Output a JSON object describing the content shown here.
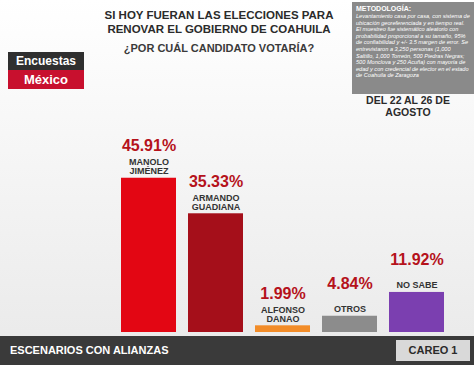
{
  "chart_data": {
    "type": "bar",
    "title": "SI HOY FUERAN LAS ELECCIONES PARA RENOVAR EL GOBIERNO DE COAHUILA",
    "subtitle": "¿POR CUÁL CANDIDATO VOTARÍA?",
    "categories": [
      "MANOLO JIMÉNEZ",
      "ARMANDO GUADIANA",
      "ALFONSO DANAO",
      "OTROS",
      "NO SABE"
    ],
    "values": [
      45.91,
      35.33,
      1.99,
      4.84,
      11.92
    ],
    "value_labels": [
      "45.91%",
      "35.33%",
      "1.99%",
      "4.84%",
      "11.92%"
    ],
    "colors": [
      "#e30613",
      "#a50f1a",
      "#f28c28",
      "#8c8c8c",
      "#7b3fb0"
    ],
    "ylim": [
      0,
      50
    ],
    "tick_labels": false,
    "data_labels": true,
    "annotations": {
      "logo": [
        "Encuestas",
        "México"
      ],
      "methodology_title": "METODOLOGÍA:",
      "methodology": "Levantamiento casa por casa, con sistema de ubicación georeferenciada y en tiempo real. El muestreo fue sistemático aleatorio con probabilidad proporcional a su tamaño, 95% de confiabilidad y +/- 3.5 margen de error. Se entrevistaron a 3,250 personas (1,000 Saltillo, 1,000 Torreón, 500 Piedras Negras; 500 Monclova y 250 Acuña) con mayoría de edad y con credencial de elector en el estado de Coahuila de Zaragoza",
      "dates": "DEL 22 AL 26 DE AGOSTO",
      "footer": "ESCENARIOS CON ALIANZAS",
      "footer_right": "CAREO 1"
    }
  }
}
